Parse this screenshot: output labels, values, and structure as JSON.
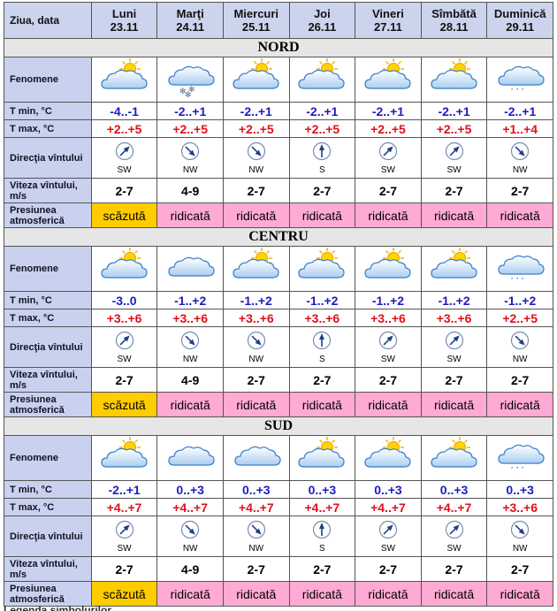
{
  "header": {
    "label": "Ziua, data",
    "days": [
      {
        "name": "Luni",
        "date": "23.11"
      },
      {
        "name": "Marţi",
        "date": "24.11"
      },
      {
        "name": "Miercuri",
        "date": "25.11"
      },
      {
        "name": "Joi",
        "date": "26.11"
      },
      {
        "name": "Vineri",
        "date": "27.11"
      },
      {
        "name": "Sîmbătă",
        "date": "28.11"
      },
      {
        "name": "Duminică",
        "date": "29.11"
      }
    ]
  },
  "row_labels": {
    "phenomena": "Fenomene",
    "tmin": "T min, °C",
    "tmax": "T max, °C",
    "wind_dir": "Direcţia vîntului",
    "wind_speed": "Viteza vîntului, m/s",
    "pressure": "Presiunea atmosferică"
  },
  "regions": [
    {
      "name": "NORD",
      "tmin": [
        "-4..-1",
        "-2..+1",
        "-2..+1",
        "-2..+1",
        "-2..+1",
        "-2..+1",
        "-2..+1"
      ],
      "tmax": [
        "+2..+5",
        "+2..+5",
        "+2..+5",
        "+2..+5",
        "+2..+5",
        "+2..+5",
        "+1..+4"
      ],
      "wind_dir": [
        "SW",
        "NW",
        "NW",
        "S",
        "SW",
        "SW",
        "NW"
      ],
      "wind_speed": [
        "2-7",
        "4-9",
        "2-7",
        "2-7",
        "2-7",
        "2-7",
        "2-7"
      ],
      "pressure": [
        "scăzută",
        "ridicată",
        "ridicată",
        "ridicată",
        "ridicată",
        "ridicată",
        "ridicată"
      ]
    },
    {
      "name": "CENTRU",
      "tmin": [
        "-3..0",
        "-1..+2",
        "-1..+2",
        "-1..+2",
        "-1..+2",
        "-1..+2",
        "-1..+2"
      ],
      "tmax": [
        "+3..+6",
        "+3..+6",
        "+3..+6",
        "+3..+6",
        "+3..+6",
        "+3..+6",
        "+2..+5"
      ],
      "wind_dir": [
        "SW",
        "NW",
        "NW",
        "S",
        "SW",
        "SW",
        "NW"
      ],
      "wind_speed": [
        "2-7",
        "4-9",
        "2-7",
        "2-7",
        "2-7",
        "2-7",
        "2-7"
      ],
      "pressure": [
        "scăzută",
        "ridicată",
        "ridicată",
        "ridicată",
        "ridicată",
        "ridicată",
        "ridicată"
      ]
    },
    {
      "name": "SUD",
      "tmin": [
        "-2..+1",
        "0..+3",
        "0..+3",
        "0..+3",
        "0..+3",
        "0..+3",
        "0..+3"
      ],
      "tmax": [
        "+4..+7",
        "+4..+7",
        "+4..+7",
        "+4..+7",
        "+4..+7",
        "+4..+7",
        "+3..+6"
      ],
      "wind_dir": [
        "SW",
        "NW",
        "NW",
        "S",
        "SW",
        "SW",
        "NW"
      ],
      "wind_speed": [
        "2-7",
        "4-9",
        "2-7",
        "2-7",
        "2-7",
        "2-7",
        "2-7"
      ],
      "pressure": [
        "scăzută",
        "ridicată",
        "ridicată",
        "ridicată",
        "ridicată",
        "ridicată",
        "ridicată"
      ]
    }
  ],
  "footer": "Legenda simbolurilor"
}
